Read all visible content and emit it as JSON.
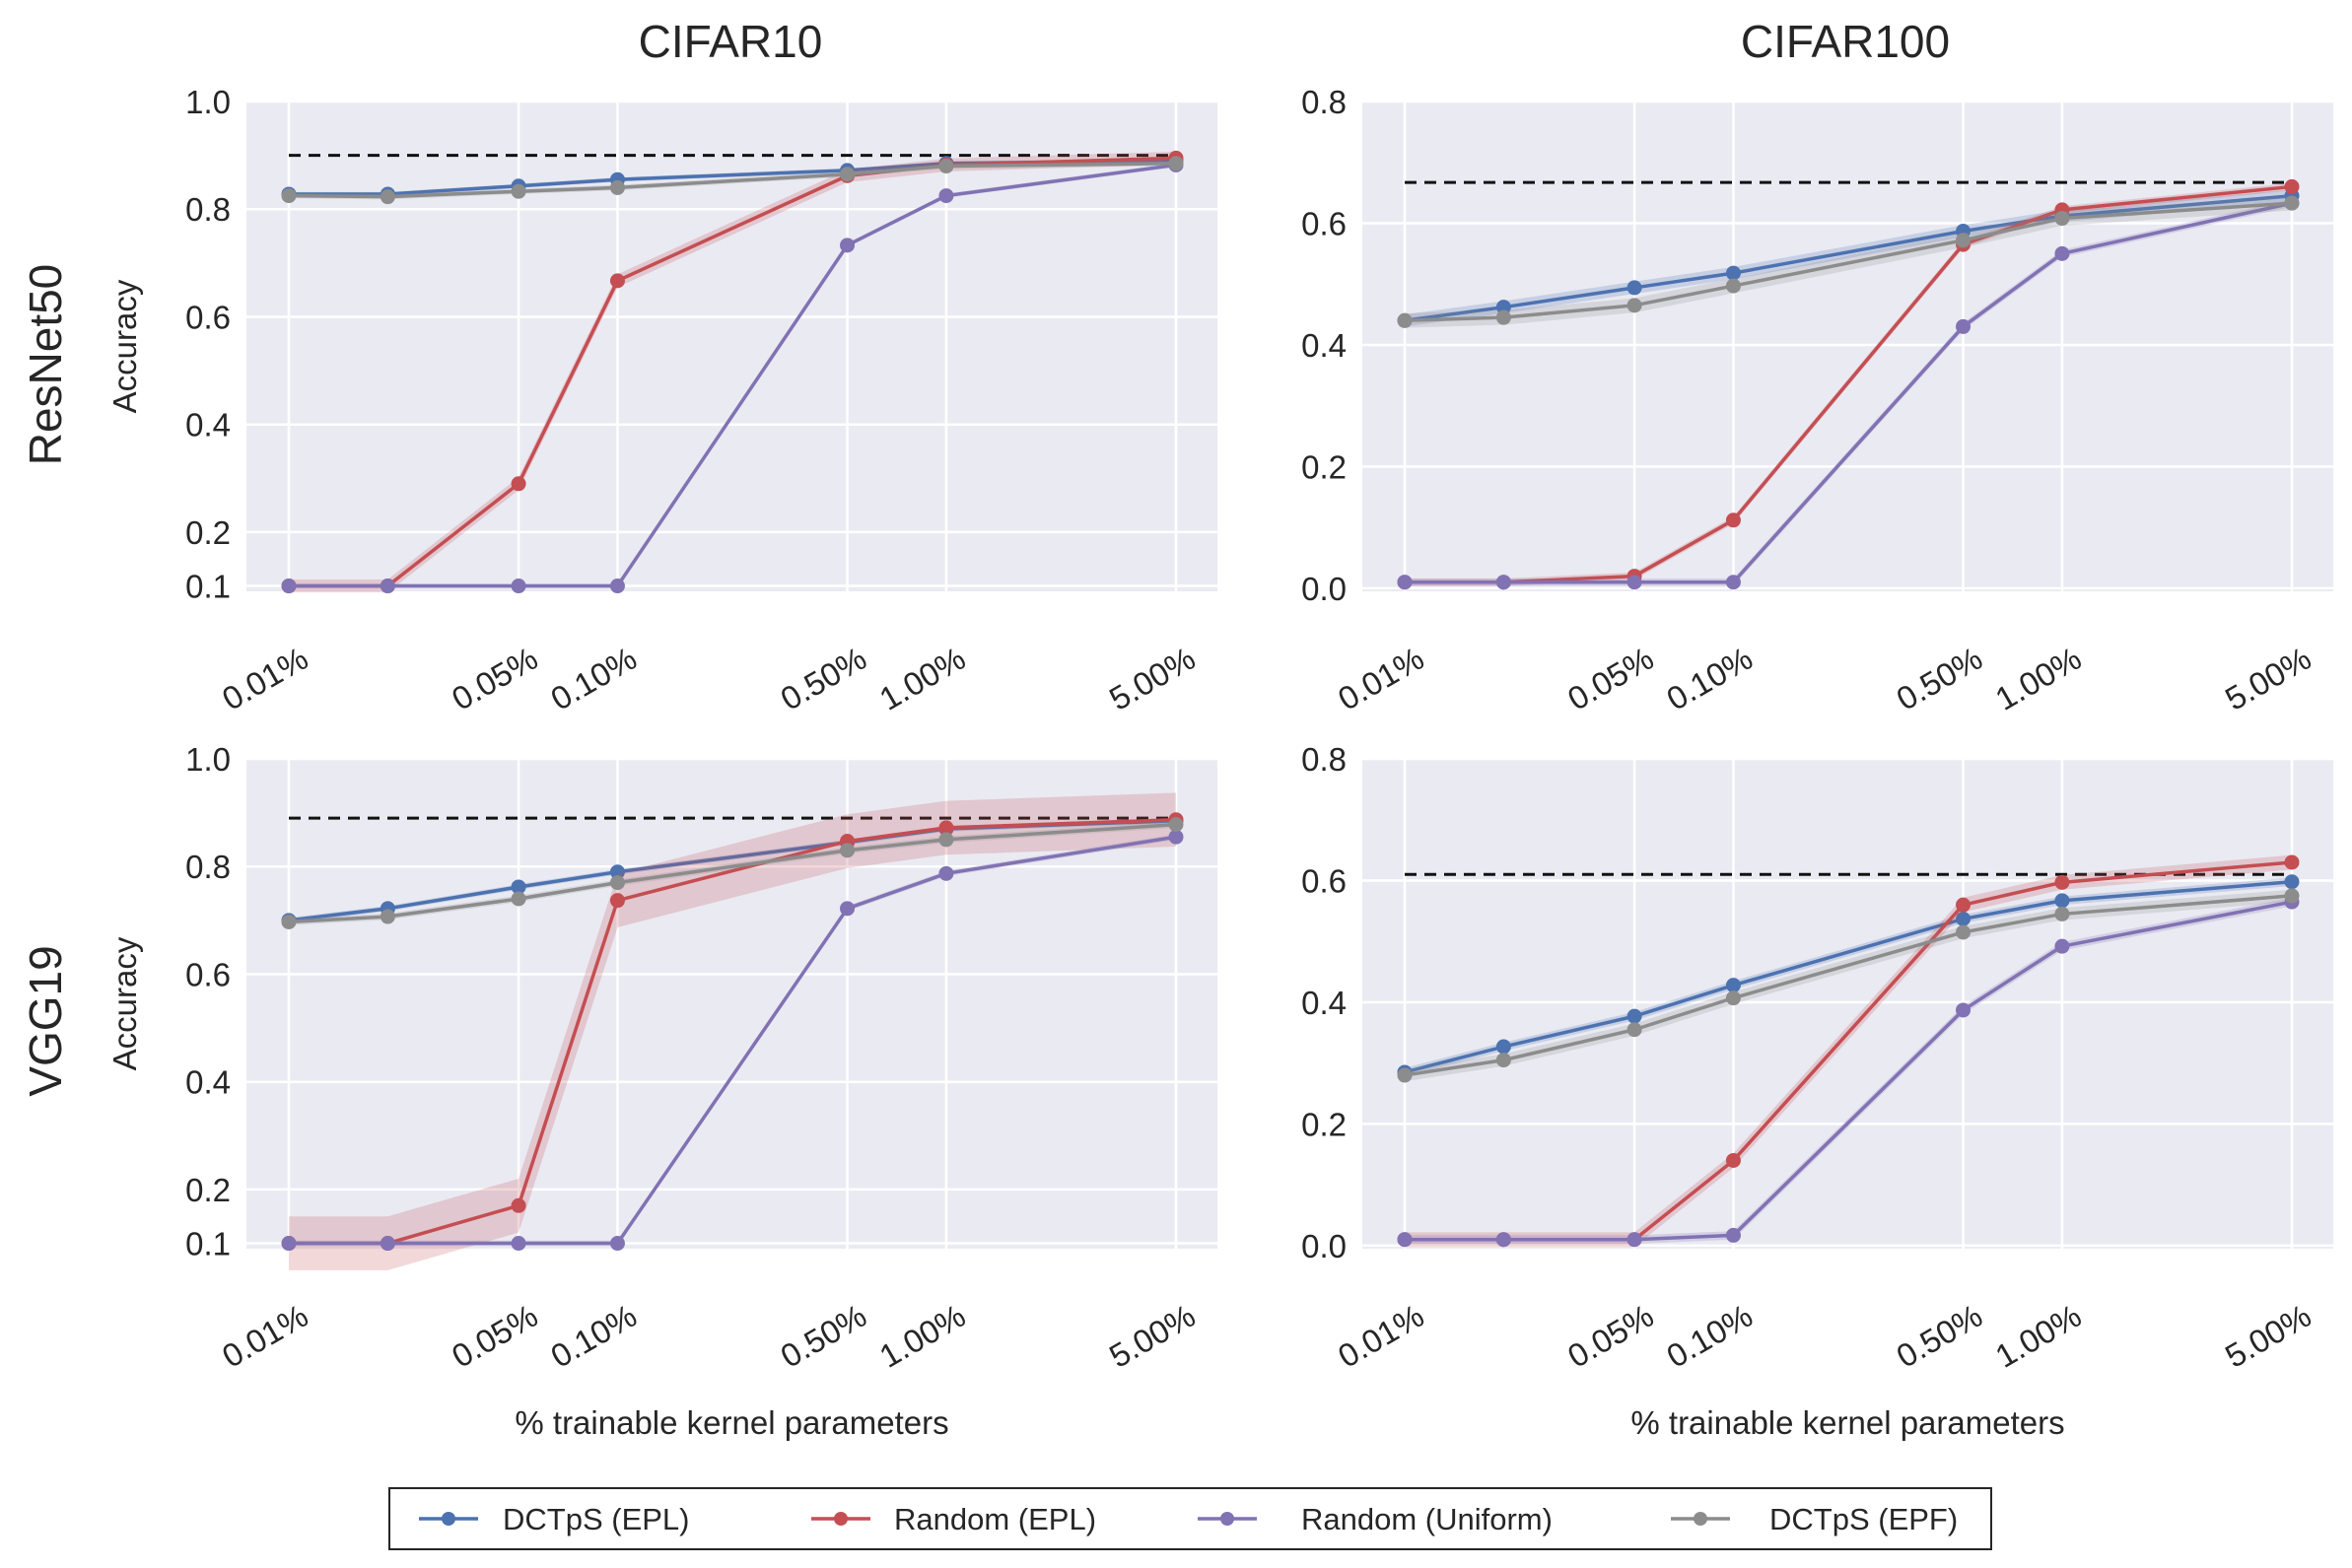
{
  "figure": {
    "col_titles": [
      "CIFAR10",
      "CIFAR100"
    ],
    "row_titles": [
      "ResNet50",
      "VGG19"
    ],
    "ylabel": "Accuracy",
    "xlabel": "% trainable kernel parameters"
  },
  "legend": [
    {
      "label": "DCTpS (EPL)",
      "color": "#4c72b0"
    },
    {
      "label": "Random (EPL)",
      "color": "#c44e52"
    },
    {
      "label": "Random (Uniform)",
      "color": "#8172b3"
    },
    {
      "label": "DCTpS (EPF)",
      "color": "#8c8c8c"
    }
  ],
  "chart_data": [
    {
      "type": "line",
      "title": "CIFAR10",
      "row": "ResNet50",
      "xlabel": "",
      "ylabel": "Accuracy",
      "x": [
        0.01,
        0.02,
        0.05,
        0.1,
        0.5,
        1.0,
        5.0
      ],
      "x_ticks": [
        0.01,
        0.05,
        0.1,
        0.5,
        1.0,
        5.0
      ],
      "x_tick_labels": [
        "0.01%",
        "0.05%",
        "0.10%",
        "0.50%",
        "1.00%",
        "5.00%"
      ],
      "ylim": [
        0.09,
        1.0
      ],
      "y_ticks": [
        0.1,
        0.2,
        0.4,
        0.6,
        0.8,
        1.0
      ],
      "y_tick_labels": [
        "0.1",
        "0.2",
        "0.4",
        "0.6",
        "0.8",
        "1.0"
      ],
      "baseline": 0.9,
      "series": [
        {
          "name": "DCTpS (EPL)",
          "values": [
            0.828,
            0.828,
            0.843,
            0.855,
            0.872,
            0.885,
            0.89
          ],
          "band": 0.004
        },
        {
          "name": "Random (EPL)",
          "values": [
            0.1,
            0.1,
            0.29,
            0.667,
            0.862,
            0.882,
            0.895
          ],
          "band": 0.012
        },
        {
          "name": "Random (Uniform)",
          "values": [
            0.1,
            0.1,
            0.1,
            0.1,
            0.733,
            0.825,
            0.882
          ],
          "band": 0.004
        },
        {
          "name": "DCTpS (EPF)",
          "values": [
            0.825,
            0.823,
            0.833,
            0.84,
            0.865,
            0.88,
            0.885
          ],
          "band": 0.005
        }
      ]
    },
    {
      "type": "line",
      "title": "CIFAR100",
      "row": "ResNet50",
      "xlabel": "",
      "ylabel": "",
      "x": [
        0.01,
        0.02,
        0.05,
        0.1,
        0.5,
        1.0,
        5.0
      ],
      "x_ticks": [
        0.01,
        0.05,
        0.1,
        0.5,
        1.0,
        5.0
      ],
      "x_tick_labels": [
        "0.01%",
        "0.05%",
        "0.10%",
        "0.50%",
        "1.00%",
        "5.00%"
      ],
      "ylim": [
        -0.005,
        0.8
      ],
      "y_ticks": [
        0.0,
        0.2,
        0.4,
        0.6,
        0.8
      ],
      "y_tick_labels": [
        "0.0",
        "0.2",
        "0.4",
        "0.6",
        "0.8"
      ],
      "baseline": 0.667,
      "series": [
        {
          "name": "DCTpS (EPL)",
          "values": [
            0.44,
            0.462,
            0.494,
            0.518,
            0.587,
            0.612,
            0.645
          ],
          "band": 0.01
        },
        {
          "name": "Random (EPL)",
          "values": [
            0.01,
            0.01,
            0.02,
            0.112,
            0.565,
            0.622,
            0.66
          ],
          "band": 0.006
        },
        {
          "name": "Random (Uniform)",
          "values": [
            0.01,
            0.01,
            0.01,
            0.01,
            0.43,
            0.55,
            0.633
          ],
          "band": 0.006
        },
        {
          "name": "DCTpS (EPF)",
          "values": [
            0.44,
            0.445,
            0.465,
            0.497,
            0.572,
            0.608,
            0.633
          ],
          "band": 0.012
        }
      ]
    },
    {
      "type": "line",
      "title": "",
      "row": "VGG19",
      "xlabel": "% trainable kernel parameters",
      "ylabel": "Accuracy",
      "x": [
        0.01,
        0.02,
        0.05,
        0.1,
        0.5,
        1.0,
        5.0
      ],
      "x_ticks": [
        0.01,
        0.05,
        0.1,
        0.5,
        1.0,
        5.0
      ],
      "x_tick_labels": [
        "0.01%",
        "0.05%",
        "0.10%",
        "0.50%",
        "1.00%",
        "5.00%"
      ],
      "ylim": [
        0.09,
        1.0
      ],
      "y_ticks": [
        0.1,
        0.2,
        0.4,
        0.6,
        0.8,
        1.0
      ],
      "y_tick_labels": [
        "0.1",
        "0.2",
        "0.4",
        "0.6",
        "0.8",
        "1.0"
      ],
      "baseline": 0.89,
      "series": [
        {
          "name": "DCTpS (EPL)",
          "values": [
            0.7,
            0.722,
            0.762,
            0.79,
            0.845,
            0.87,
            0.885
          ],
          "band": 0.005
        },
        {
          "name": "Random (EPL)",
          "values": [
            0.1,
            0.1,
            0.17,
            0.737,
            0.847,
            0.872,
            0.887
          ],
          "band": 0.05
        },
        {
          "name": "Random (Uniform)",
          "values": [
            0.1,
            0.1,
            0.1,
            0.1,
            0.722,
            0.787,
            0.855
          ],
          "band": 0.005
        },
        {
          "name": "DCTpS (EPF)",
          "values": [
            0.697,
            0.707,
            0.74,
            0.77,
            0.83,
            0.85,
            0.878
          ],
          "band": 0.006
        }
      ]
    },
    {
      "type": "line",
      "title": "",
      "row": "VGG19",
      "xlabel": "% trainable kernel parameters",
      "ylabel": "",
      "x": [
        0.01,
        0.02,
        0.05,
        0.1,
        0.5,
        1.0,
        5.0
      ],
      "x_ticks": [
        0.01,
        0.05,
        0.1,
        0.5,
        1.0,
        5.0
      ],
      "x_tick_labels": [
        "0.01%",
        "0.05%",
        "0.10%",
        "0.50%",
        "1.00%",
        "5.00%"
      ],
      "ylim": [
        -0.005,
        0.8
      ],
      "y_ticks": [
        0.0,
        0.2,
        0.4,
        0.6,
        0.8
      ],
      "y_tick_labels": [
        "0.0",
        "0.2",
        "0.4",
        "0.6",
        "0.8"
      ],
      "baseline": 0.61,
      "series": [
        {
          "name": "DCTpS (EPL)",
          "values": [
            0.285,
            0.327,
            0.377,
            0.428,
            0.537,
            0.567,
            0.598
          ],
          "band": 0.007
        },
        {
          "name": "Random (EPL)",
          "values": [
            0.01,
            0.01,
            0.01,
            0.14,
            0.56,
            0.597,
            0.63
          ],
          "band": 0.012
        },
        {
          "name": "Random (Uniform)",
          "values": [
            0.01,
            0.01,
            0.01,
            0.017,
            0.387,
            0.492,
            0.565
          ],
          "band": 0.007
        },
        {
          "name": "DCTpS (EPF)",
          "values": [
            0.28,
            0.305,
            0.355,
            0.407,
            0.515,
            0.545,
            0.575
          ],
          "band": 0.01
        }
      ]
    }
  ]
}
